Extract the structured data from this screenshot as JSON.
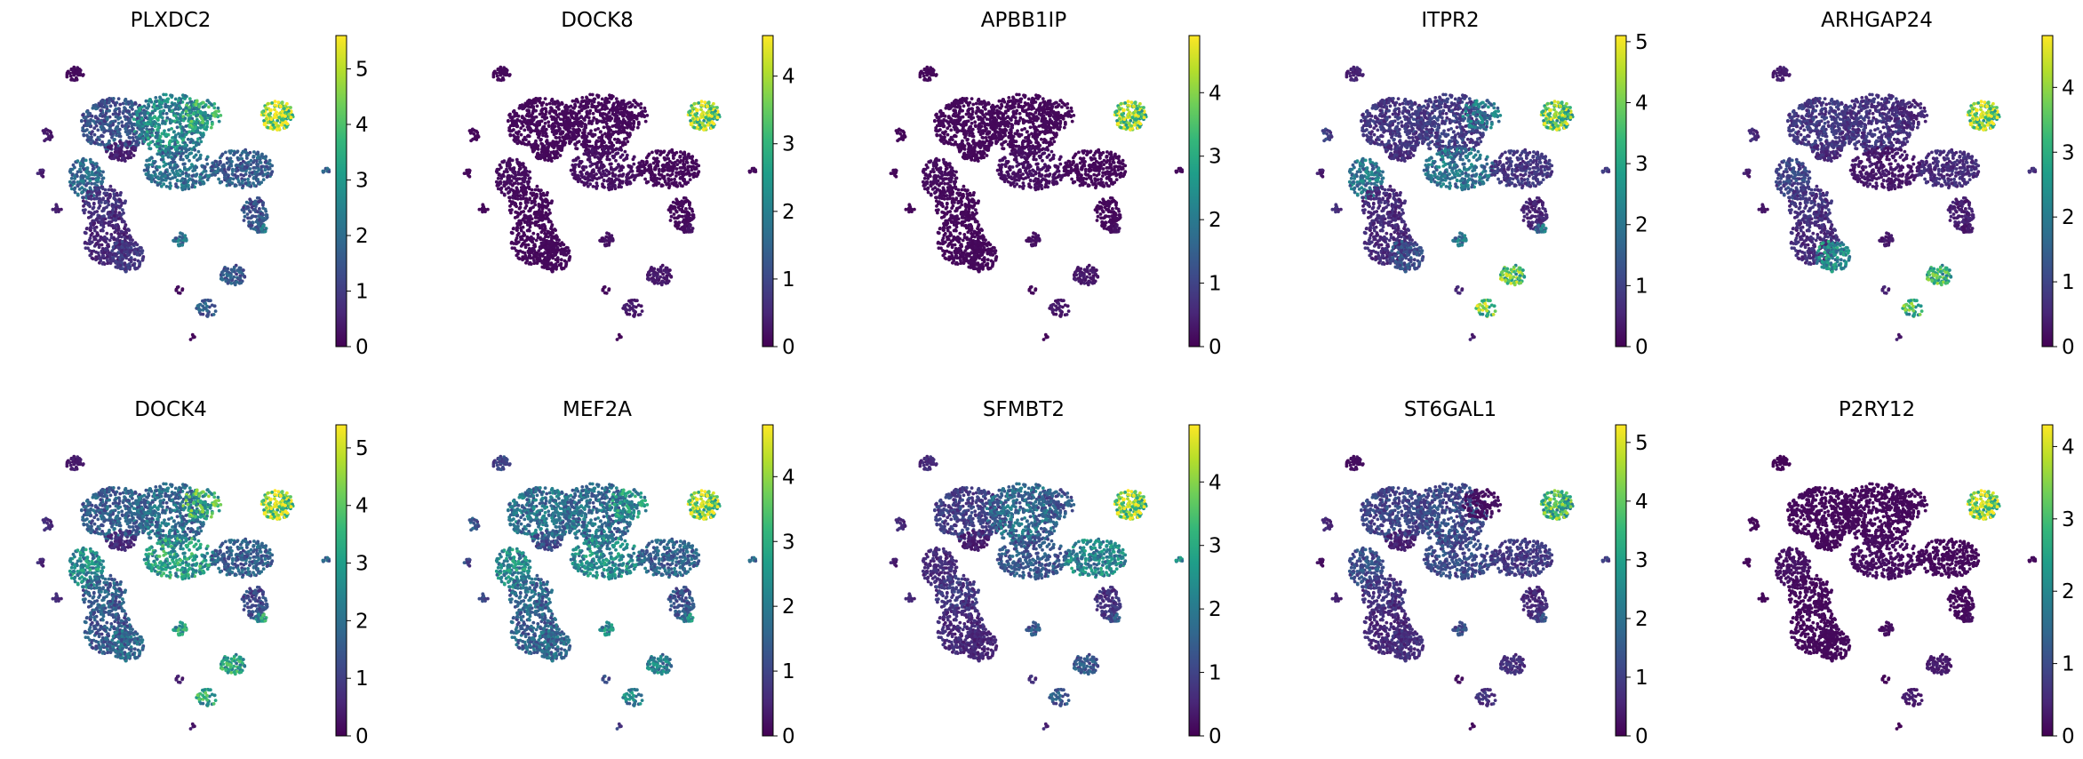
{
  "figure": {
    "colormap": "viridis",
    "colormap_stops": [
      "#440154",
      "#482878",
      "#3e4989",
      "#31688e",
      "#26828e",
      "#1f9e89",
      "#35b779",
      "#6ece58",
      "#b5de2b",
      "#fde725"
    ],
    "background": "#ffffff"
  },
  "chart_data": [
    {
      "type": "scatter",
      "title": "PLXDC2",
      "colorbar": {
        "ticks": [
          0,
          1,
          2,
          3,
          4,
          5
        ],
        "vmin": 0,
        "vmax": 5.6
      },
      "cluster_levels": [
        0.15,
        1.4,
        2.6,
        3.2,
        0.4,
        1.9,
        0.8,
        0.6,
        0.9,
        0.5,
        2.0,
        1.6,
        5.0,
        1.4,
        0.5,
        0.5,
        1.5
      ]
    },
    {
      "type": "scatter",
      "title": "DOCK8",
      "colorbar": {
        "ticks": [
          0,
          1,
          2,
          3,
          4
        ],
        "vmin": 0,
        "vmax": 4.6
      },
      "cluster_levels": [
        0.1,
        0.1,
        0.1,
        0.1,
        0.1,
        0.15,
        0.1,
        0.1,
        0.1,
        0.1,
        0.2,
        0.1,
        3.8,
        0.1,
        0.1,
        0.1,
        0.3
      ]
    },
    {
      "type": "scatter",
      "title": "APBB1IP",
      "colorbar": {
        "ticks": [
          0,
          1,
          2,
          3,
          4
        ],
        "vmin": 0,
        "vmax": 4.9
      },
      "cluster_levels": [
        0.1,
        0.1,
        0.1,
        0.1,
        0.1,
        0.15,
        0.1,
        0.1,
        0.1,
        0.1,
        0.2,
        0.1,
        3.9,
        0.1,
        0.1,
        0.1,
        0.3
      ]
    },
    {
      "type": "scatter",
      "title": "ITPR2",
      "colorbar": {
        "ticks": [
          0,
          1,
          2,
          3,
          4,
          5
        ],
        "vmin": 0,
        "vmax": 5.1
      },
      "cluster_levels": [
        0.5,
        0.8,
        0.9,
        2.0,
        1.0,
        2.0,
        0.6,
        0.6,
        1.2,
        0.7,
        1.9,
        0.8,
        3.8,
        0.5,
        0.4,
        0.7,
        3.6
      ]
    },
    {
      "type": "scatter",
      "title": "ARHGAP24",
      "colorbar": {
        "ticks": [
          0,
          1,
          2,
          3,
          4
        ],
        "vmin": 0,
        "vmax": 4.8
      },
      "cluster_levels": [
        0.4,
        0.8,
        0.7,
        0.5,
        0.6,
        1.0,
        0.7,
        0.6,
        2.2,
        0.6,
        0.3,
        0.6,
        4.0,
        0.4,
        0.4,
        0.3,
        3.0
      ]
    },
    {
      "type": "scatter",
      "title": "DOCK4",
      "colorbar": {
        "ticks": [
          0,
          1,
          2,
          3,
          4,
          5
        ],
        "vmin": 0,
        "vmax": 5.4
      },
      "cluster_levels": [
        0.4,
        1.6,
        1.9,
        3.4,
        0.7,
        2.6,
        1.6,
        1.5,
        1.8,
        0.7,
        2.9,
        1.6,
        4.6,
        1.2,
        0.6,
        0.7,
        3.0
      ]
    },
    {
      "type": "scatter",
      "title": "MEF2A",
      "colorbar": {
        "ticks": [
          0,
          1,
          2,
          3,
          4
        ],
        "vmin": 0,
        "vmax": 4.8
      },
      "cluster_levels": [
        1.0,
        1.8,
        1.7,
        2.4,
        1.3,
        2.3,
        1.6,
        1.5,
        1.6,
        1.2,
        2.2,
        1.5,
        4.0,
        1.2,
        1.0,
        1.1,
        2.0
      ]
    },
    {
      "type": "scatter",
      "title": "SFMBT2",
      "colorbar": {
        "ticks": [
          0,
          1,
          2,
          3,
          4
        ],
        "vmin": 0,
        "vmax": 4.9
      },
      "cluster_levels": [
        0.6,
        0.9,
        1.7,
        1.3,
        0.6,
        0.6,
        0.8,
        0.6,
        0.5,
        0.4,
        1.3,
        2.2,
        4.0,
        0.7,
        0.4,
        0.6,
        1.3
      ]
    },
    {
      "type": "scatter",
      "title": "ST6GAL1",
      "colorbar": {
        "ticks": [
          0,
          1,
          2,
          3,
          4,
          5
        ],
        "vmin": 0,
        "vmax": 5.3
      },
      "cluster_levels": [
        0.2,
        1.1,
        1.2,
        0.2,
        0.6,
        1.3,
        0.8,
        0.6,
        0.7,
        0.5,
        1.2,
        0.9,
        3.5,
        0.6,
        0.2,
        0.5,
        0.7
      ]
    },
    {
      "type": "scatter",
      "title": "P2RY12",
      "colorbar": {
        "ticks": [
          0,
          1,
          2,
          3,
          4
        ],
        "vmin": 0,
        "vmax": 4.3
      },
      "cluster_levels": [
        0.05,
        0.1,
        0.1,
        0.1,
        0.1,
        0.2,
        0.1,
        0.1,
        0.1,
        0.1,
        0.15,
        0.1,
        3.6,
        0.1,
        0.1,
        0.1,
        0.3
      ]
    }
  ]
}
